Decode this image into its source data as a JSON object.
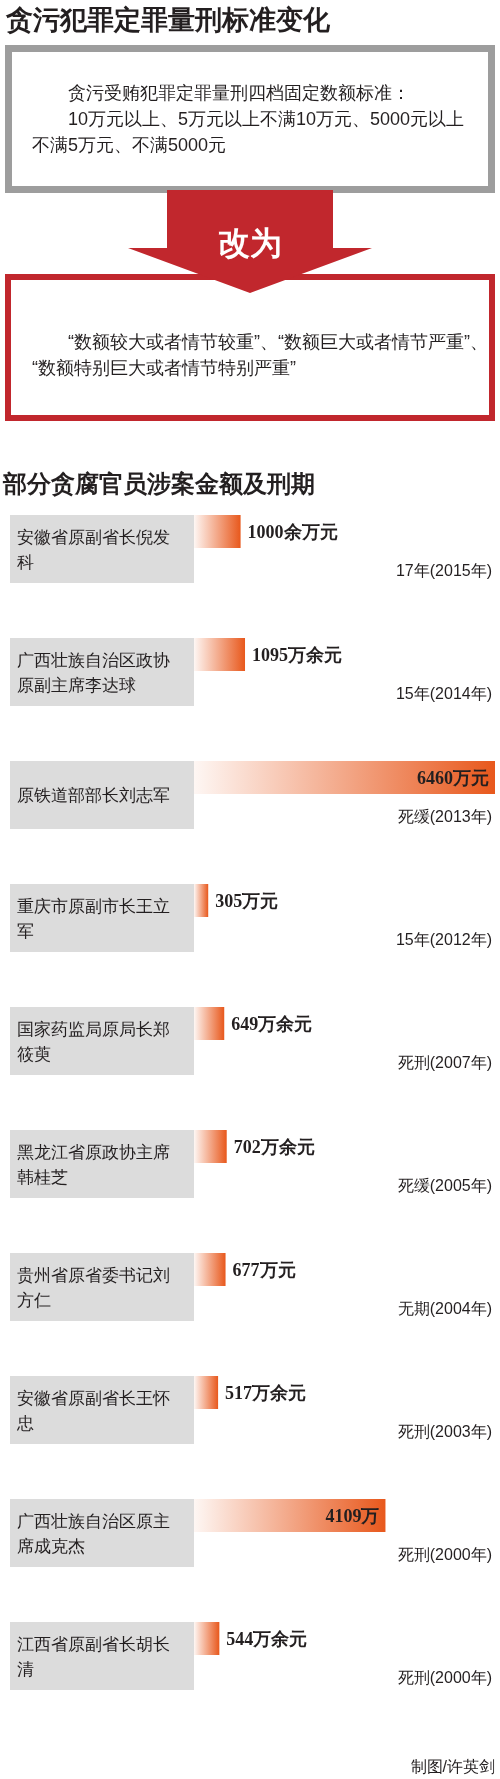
{
  "chart_data": [
    {
      "type": "other",
      "title": "贪污犯罪定罪量刑标准变化",
      "annotations": [
        "贪污受贿犯罪定罪量刑四档固定数额标准：\n10万元以上、5万元以上不满10万元、5000元以上不满5万元、不满5000元",
        "改为",
        "“数额较大或者情节较重”、“数额巨大或者情节严重”、“数额特别巨大或者情节特别严重”"
      ]
    },
    {
      "type": "bar",
      "orientation": "horizontal",
      "title": "部分贪腐官员涉案金额及刑期",
      "categories": [
        "安徽省原副省长倪发科",
        "广西壮族自治区政协原副主席李达球",
        "原铁道部部长刘志军",
        "重庆市原副市长王立军",
        "国家药监局原局长郑筱萸",
        "黑龙江省原政协主席韩桂芝",
        "贵州省原省委书记刘方仁",
        "安徽省原副省长王怀忠",
        "广西壮族自治区原主席成克杰",
        "江西省原副省长胡长清"
      ],
      "values": [
        1000,
        1095,
        6460,
        305,
        649,
        702,
        677,
        517,
        4109,
        544
      ],
      "value_labels": [
        "1000余万元",
        "1095万余元",
        "6460万元",
        "305万元",
        "649万余元",
        "702万余元",
        "677万元",
        "517万余元",
        "4109万",
        "544万余元"
      ],
      "color": "#e8581c",
      "annotations": [
        "17年(2015年)",
        "15年(2014年)",
        "死缓(2013年)",
        "15年(2012年)",
        "死刑(2007年)",
        "死缓(2005年)",
        "无期(2004年)",
        "死刑(2003年)",
        "死刑(2000年)",
        "死刑(2000年)",
        "制图/许英剑"
      ]
    }
  ]
}
